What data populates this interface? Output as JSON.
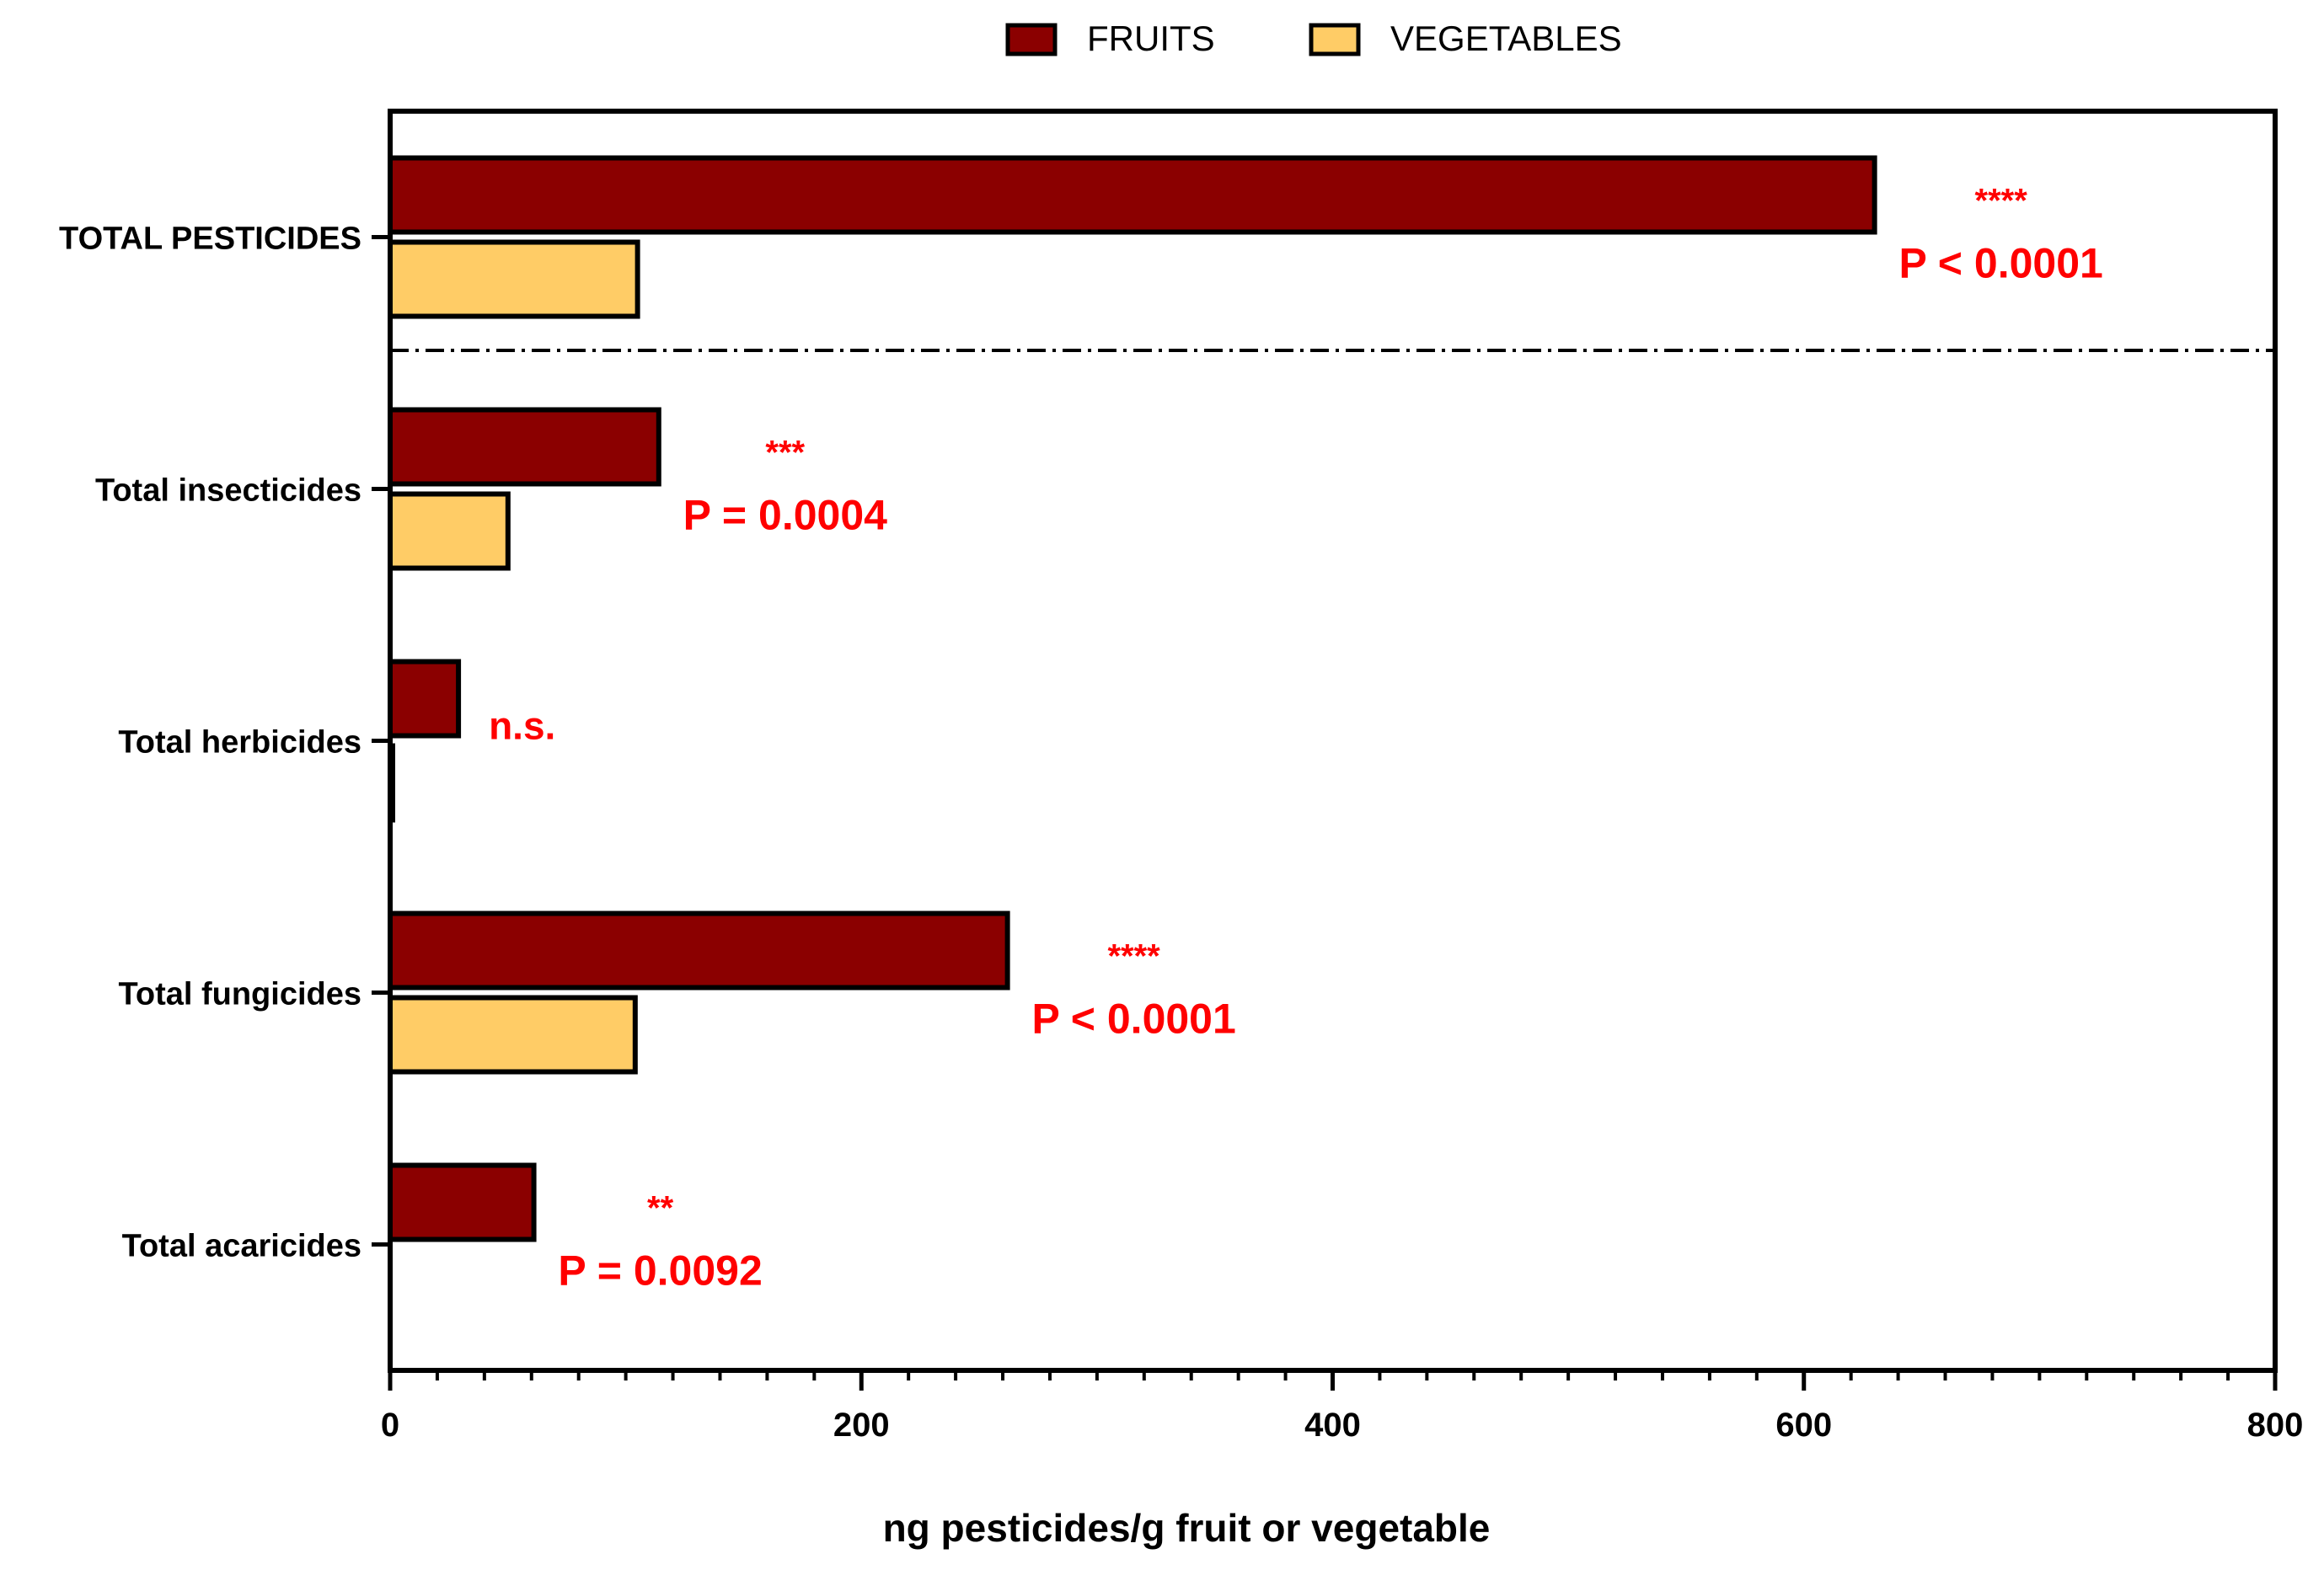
{
  "colors": {
    "fruits": "#8B0000",
    "vegetables": "#FFCC66",
    "stroke": "#000000",
    "annotation": "#FF0000"
  },
  "chart_data": {
    "type": "bar",
    "orientation": "horizontal",
    "title": "",
    "xlabel": "ng pesticides/g fruit or vegetable",
    "ylabel": "",
    "xlim": [
      0,
      800
    ],
    "x_ticks": [
      0,
      200,
      400,
      600,
      800
    ],
    "x_minor_tick_step": 20,
    "grid": false,
    "legend_position": "top-center",
    "categories": [
      "TOTAL PESTICIDES",
      "Total insecticides",
      "Total herbicides",
      "Total fungicides",
      "Total acaricides"
    ],
    "series": [
      {
        "name": "FRUITS",
        "color_key": "fruits",
        "values": [
          630,
          114,
          29,
          262,
          61
        ]
      },
      {
        "name": "VEGETABLES",
        "color_key": "vegetables",
        "values": [
          105,
          50,
          1,
          104,
          0
        ]
      }
    ],
    "annotations": [
      {
        "category": "TOTAL PESTICIDES",
        "stars": "****",
        "p_text": "P < 0.0001"
      },
      {
        "category": "Total insecticides",
        "stars": "***",
        "p_text": "P = 0.0004"
      },
      {
        "category": "Total herbicides",
        "stars": "",
        "p_text": "n.s."
      },
      {
        "category": "Total fungicides",
        "stars": "****",
        "p_text": "P < 0.0001"
      },
      {
        "category": "Total acaricides",
        "stars": "**",
        "p_text": "P = 0.0092"
      }
    ],
    "separator": {
      "after_category": "TOTAL PESTICIDES",
      "style": "dash-dot"
    }
  }
}
